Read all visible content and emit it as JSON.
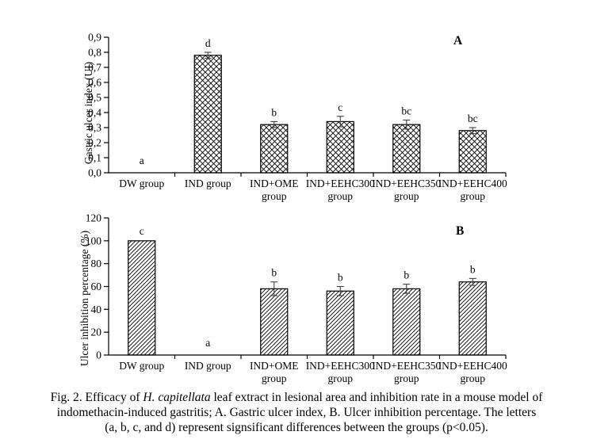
{
  "figure": {
    "caption": {
      "lines": [
        [
          {
            "t": "Fig. 2. Efficacy of "
          },
          {
            "t": "H. capitellata",
            "italic": true
          },
          {
            "t": " leaf extract in lesional area and inhibition rate in a mouse model of"
          }
        ],
        [
          {
            "t": "indomethacin-induced gastritis; A. Gastric ulcer index, B. Ulcer inhibition percentage. The letters"
          }
        ],
        [
          {
            "t": "(a, b, c, and d) represent signsificant differences between the groups (p<0.05)."
          }
        ]
      ]
    },
    "colors": {
      "axis": "#000000",
      "bar_outline": "#000000",
      "hatch": "#000000",
      "error_bar": "#404040",
      "background": "#ffffff"
    }
  },
  "chart_data": [
    {
      "type": "bar",
      "panel_label": "A",
      "title": "",
      "xlabel": "",
      "ylabel": "Gastric ulcer index (UI)",
      "categories": [
        "DW group",
        "IND group",
        "IND+OME group",
        "IND+EEHC300 group",
        "IND+EEHC350 group",
        "IND+EEHC400 group"
      ],
      "category_label_lines": [
        [
          "DW group"
        ],
        [
          "IND group"
        ],
        [
          "IND+OME",
          "group"
        ],
        [
          "IND+EEHC300",
          "group"
        ],
        [
          "IND+EEHC350",
          "group"
        ],
        [
          "IND+EEHC400",
          "group"
        ]
      ],
      "values": [
        0,
        0.78,
        0.32,
        0.34,
        0.32,
        0.28
      ],
      "errors": [
        0,
        0.02,
        0.02,
        0.035,
        0.03,
        0.02
      ],
      "sig_letters": [
        "a",
        "d",
        "b",
        "c",
        "bc",
        "bc"
      ],
      "ylim": [
        0,
        0.9
      ],
      "ytick_labels": [
        "0,0",
        "0,1",
        "0,2",
        "0,3",
        "0,4",
        "0,5",
        "0,6",
        "0,7",
        "0,8",
        "0,9"
      ],
      "bar_fill": "crosshatch",
      "grid": false,
      "legend": "none"
    },
    {
      "type": "bar",
      "panel_label": "B",
      "title": "",
      "xlabel": "",
      "ylabel": "Ulcer inhibition percentage (%)",
      "categories": [
        "DW group",
        "IND group",
        "IND+OME group",
        "IND+EEHC300 group",
        "IND+EEHC350 group",
        "IND+EEHC400 group"
      ],
      "category_label_lines": [
        [
          "DW group"
        ],
        [
          "IND group"
        ],
        [
          "IND+OME",
          "group"
        ],
        [
          "IND+EEHC300",
          "group"
        ],
        [
          "IND+EEHC350",
          "group"
        ],
        [
          "IND+EEHC400",
          "group"
        ]
      ],
      "values": [
        100,
        0,
        58,
        56,
        58,
        64
      ],
      "errors": [
        0,
        0,
        6,
        4,
        4,
        3
      ],
      "sig_letters": [
        "c",
        "a",
        "b",
        "b",
        "b",
        "b"
      ],
      "ylim": [
        0,
        120
      ],
      "ytick_labels": [
        "0",
        "20",
        "40",
        "60",
        "80",
        "100",
        "120"
      ],
      "bar_fill": "diagonal",
      "grid": false,
      "legend": "none"
    }
  ]
}
